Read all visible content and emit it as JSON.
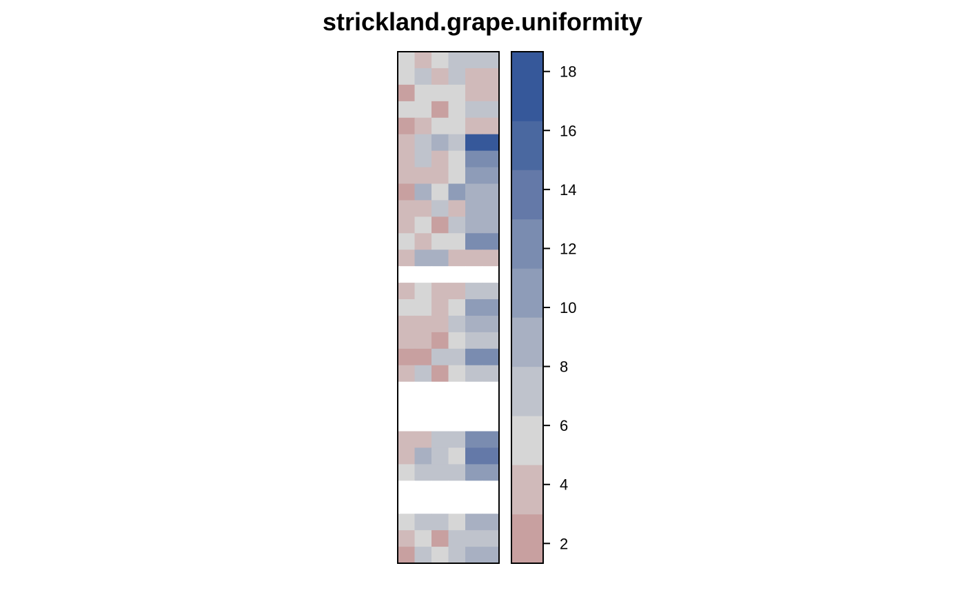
{
  "chart_data": {
    "type": "heatmap",
    "title": "strickland.grape.uniformity",
    "xlabel": "",
    "ylabel": "",
    "n_cols": 6,
    "n_rows": 31,
    "zlim": [
      1.33,
      18.67
    ],
    "legend": {
      "position": "right",
      "ticks": [
        2,
        4,
        6,
        8,
        10,
        12,
        14,
        16,
        18
      ],
      "tick_labels": [
        "2",
        "4",
        "6",
        "8",
        "10",
        "12",
        "14",
        "16",
        "18"
      ],
      "breaks": [
        1.33,
        3,
        4.67,
        6.33,
        8,
        9.67,
        11.33,
        13,
        14.67,
        16.33,
        18.67
      ],
      "colors": [
        "#c8a0a0",
        "#d0baba",
        "#d6d6d6",
        "#bfc3cc",
        "#a8b0c2",
        "#8e9cb8",
        "#7a8cb0",
        "#6479a8",
        "#4a68a0",
        "#36589a"
      ]
    },
    "missing_color": "#ffffff",
    "values": [
      [
        6,
        4,
        6,
        7,
        7,
        7
      ],
      [
        6,
        7,
        4,
        7,
        4,
        4
      ],
      [
        2,
        6,
        6,
        6,
        4,
        4
      ],
      [
        6,
        6,
        2,
        6,
        7,
        7
      ],
      [
        2,
        4,
        6,
        6,
        4,
        4
      ],
      [
        4,
        7,
        9,
        7,
        17,
        17
      ],
      [
        4,
        7,
        4,
        6,
        12,
        12
      ],
      [
        4,
        4,
        4,
        6,
        10,
        10
      ],
      [
        2,
        9,
        6,
        10,
        9,
        9
      ],
      [
        4,
        4,
        7,
        4,
        9,
        9
      ],
      [
        4,
        6,
        2,
        7,
        9,
        9
      ],
      [
        6,
        4,
        6,
        6,
        12,
        12
      ],
      [
        4,
        9,
        9,
        4,
        4,
        4
      ],
      [
        null,
        null,
        null,
        null,
        null,
        null
      ],
      [
        4,
        6,
        4,
        4,
        7,
        7
      ],
      [
        6,
        6,
        4,
        6,
        10,
        10
      ],
      [
        4,
        4,
        4,
        7,
        9,
        9
      ],
      [
        4,
        4,
        2,
        6,
        7,
        7
      ],
      [
        2,
        2,
        7,
        7,
        12,
        12
      ],
      [
        4,
        7,
        2,
        6,
        7,
        7
      ],
      [
        null,
        null,
        null,
        null,
        null,
        null
      ],
      [
        null,
        null,
        null,
        null,
        null,
        null
      ],
      [
        null,
        null,
        null,
        null,
        null,
        null
      ],
      [
        4,
        4,
        7,
        7,
        12,
        12
      ],
      [
        4,
        9,
        7,
        6,
        14,
        14
      ],
      [
        6,
        7,
        7,
        7,
        10,
        10
      ],
      [
        null,
        null,
        null,
        null,
        null,
        null
      ],
      [
        null,
        null,
        null,
        null,
        null,
        null
      ],
      [
        6,
        7,
        7,
        6,
        9,
        9
      ],
      [
        4,
        6,
        2,
        7,
        7,
        7
      ],
      [
        2,
        7,
        6,
        7,
        9,
        9
      ]
    ]
  }
}
